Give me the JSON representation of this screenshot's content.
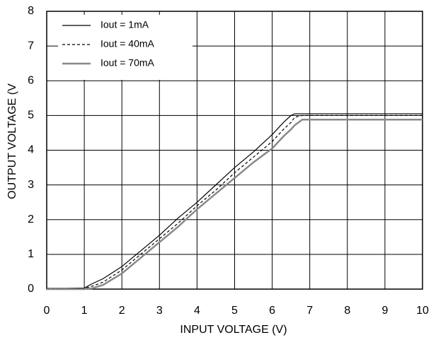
{
  "chart_data": {
    "type": "line",
    "xlabel": "INPUT VOLTAGE  (V)",
    "ylabel": "OUTPUT VOLTAGE (V",
    "x": [
      0,
      0.5,
      1,
      1.2,
      1.5,
      2,
      2.5,
      3,
      3.5,
      4,
      4.5,
      5,
      5.5,
      6,
      6.3,
      6.5,
      6.6,
      6.8,
      7,
      8,
      9,
      10
    ],
    "series": [
      {
        "name": "Iout = 1mA",
        "color": "#000000",
        "style": "solid",
        "width": 1.2,
        "values": [
          0.02,
          0.02,
          0.03,
          0.15,
          0.3,
          0.65,
          1.1,
          1.55,
          2.05,
          2.5,
          3.0,
          3.5,
          3.95,
          4.45,
          4.8,
          5.0,
          5.05,
          5.05,
          5.05,
          5.05,
          5.05,
          5.05
        ]
      },
      {
        "name": "Iout = 40mA",
        "color": "#000000",
        "style": "dashed",
        "width": 1.2,
        "values": [
          0.02,
          0.02,
          0.02,
          0.08,
          0.2,
          0.55,
          1.0,
          1.45,
          1.9,
          2.4,
          2.85,
          3.35,
          3.8,
          4.25,
          4.6,
          4.8,
          4.95,
          5.0,
          5.0,
          5.0,
          5.0,
          5.0
        ]
      },
      {
        "name": "Iout = 70mA",
        "color": "#888888",
        "style": "solid",
        "width": 2.5,
        "values": [
          0.0,
          0.0,
          0.0,
          0.02,
          0.12,
          0.45,
          0.9,
          1.35,
          1.8,
          2.3,
          2.75,
          3.2,
          3.65,
          4.05,
          4.4,
          4.6,
          4.72,
          4.88,
          4.88,
          4.88,
          4.88,
          4.88
        ]
      }
    ],
    "xlim": [
      0,
      10
    ],
    "xticks": [
      0,
      1,
      2,
      3,
      4,
      5,
      6,
      7,
      8,
      9,
      10
    ],
    "ylim": [
      0,
      8
    ],
    "yticks": [
      0,
      1,
      2,
      3,
      4,
      5,
      6,
      7,
      8
    ],
    "grid": true,
    "legend": "upper left"
  }
}
